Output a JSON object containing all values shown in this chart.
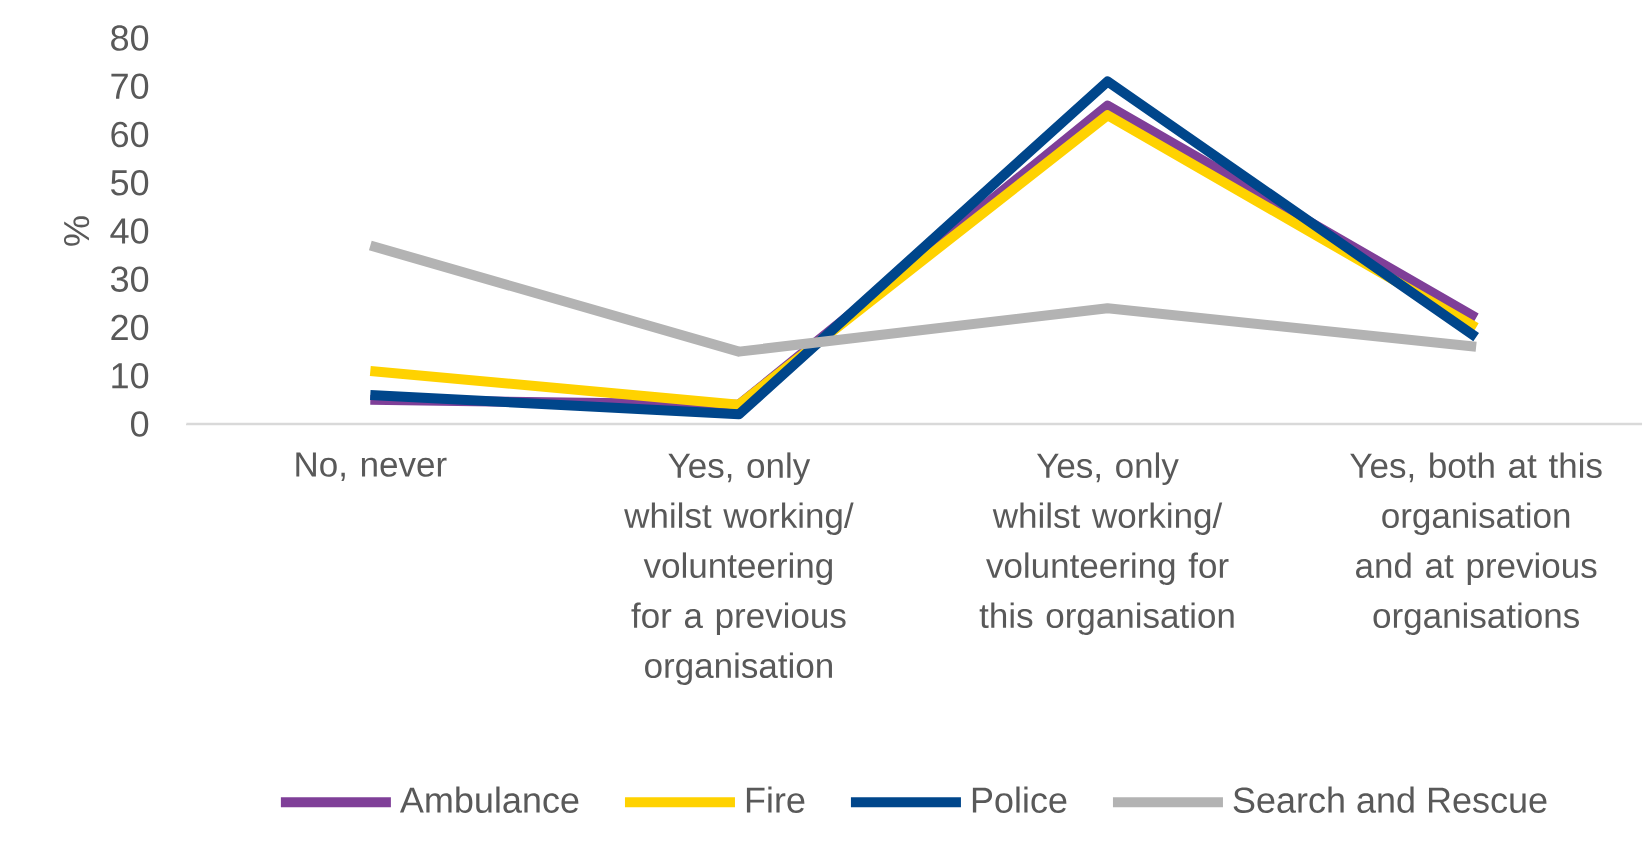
{
  "chart_data": {
    "type": "line",
    "ylabel": "%",
    "categories": [
      "No, never",
      "Yes, only whilst working/ volunteering for a previous organisation",
      "Yes, only whilst working/ volunteering for this organisation",
      "Yes, both at this organisation and at previous organisations"
    ],
    "series": [
      {
        "name": "Ambulance",
        "color": "#7f3f98",
        "values": [
          5,
          4,
          66,
          22
        ]
      },
      {
        "name": "Fire",
        "color": "#ffd200",
        "values": [
          11,
          4,
          64,
          20
        ]
      },
      {
        "name": "Police",
        "color": "#00468b",
        "values": [
          6,
          2,
          71,
          18
        ]
      },
      {
        "name": "Search and Rescue",
        "color": "#b3b3b3",
        "values": [
          37,
          15,
          24,
          16
        ]
      }
    ],
    "ylim": [
      0,
      80
    ],
    "yticks": [
      0,
      10,
      20,
      30,
      40,
      50,
      60,
      70,
      80
    ],
    "legend": "bottom",
    "marker": "none"
  }
}
